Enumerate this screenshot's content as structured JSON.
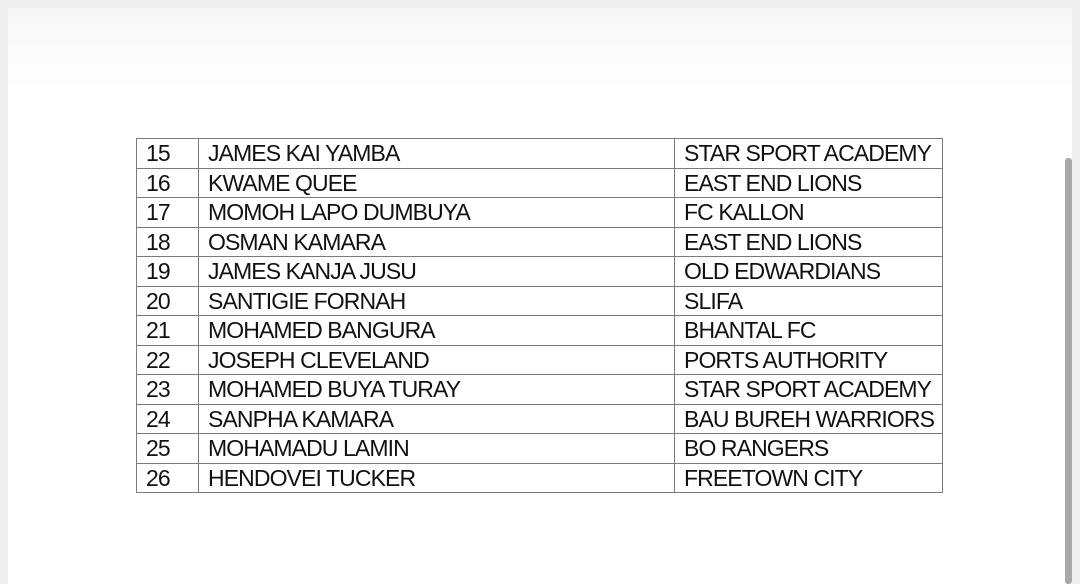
{
  "table": {
    "rows": [
      {
        "no": "15",
        "name": "JAMES KAI YAMBA",
        "club": "STAR SPORT ACADEMY"
      },
      {
        "no": "16",
        "name": "KWAME QUEE",
        "club": "EAST END LIONS"
      },
      {
        "no": "17",
        "name": "MOMOH LAPO DUMBUYA",
        "club": "FC KALLON"
      },
      {
        "no": "18",
        "name": "OSMAN KAMARA",
        "club": "EAST END LIONS"
      },
      {
        "no": "19",
        "name": "JAMES KANJA JUSU",
        "club": "OLD EDWARDIANS"
      },
      {
        "no": "20",
        "name": "SANTIGIE FORNAH",
        "club": "SLIFA"
      },
      {
        "no": "21",
        "name": "MOHAMED BANGURA",
        "club": "BHANTAL FC"
      },
      {
        "no": "22",
        "name": "JOSEPH CLEVELAND",
        "club": "PORTS AUTHORITY"
      },
      {
        "no": "23",
        "name": "MOHAMED BUYA TURAY",
        "club": "STAR SPORT ACADEMY"
      },
      {
        "no": "24",
        "name": "SANPHA KAMARA",
        "club": "BAU BUREH WARRIORS"
      },
      {
        "no": "25",
        "name": "MOHAMADU LAMIN",
        "club": "BO RANGERS"
      },
      {
        "no": "26",
        "name": "HENDOVEI TUCKER",
        "club": "FREETOWN CITY"
      }
    ]
  }
}
